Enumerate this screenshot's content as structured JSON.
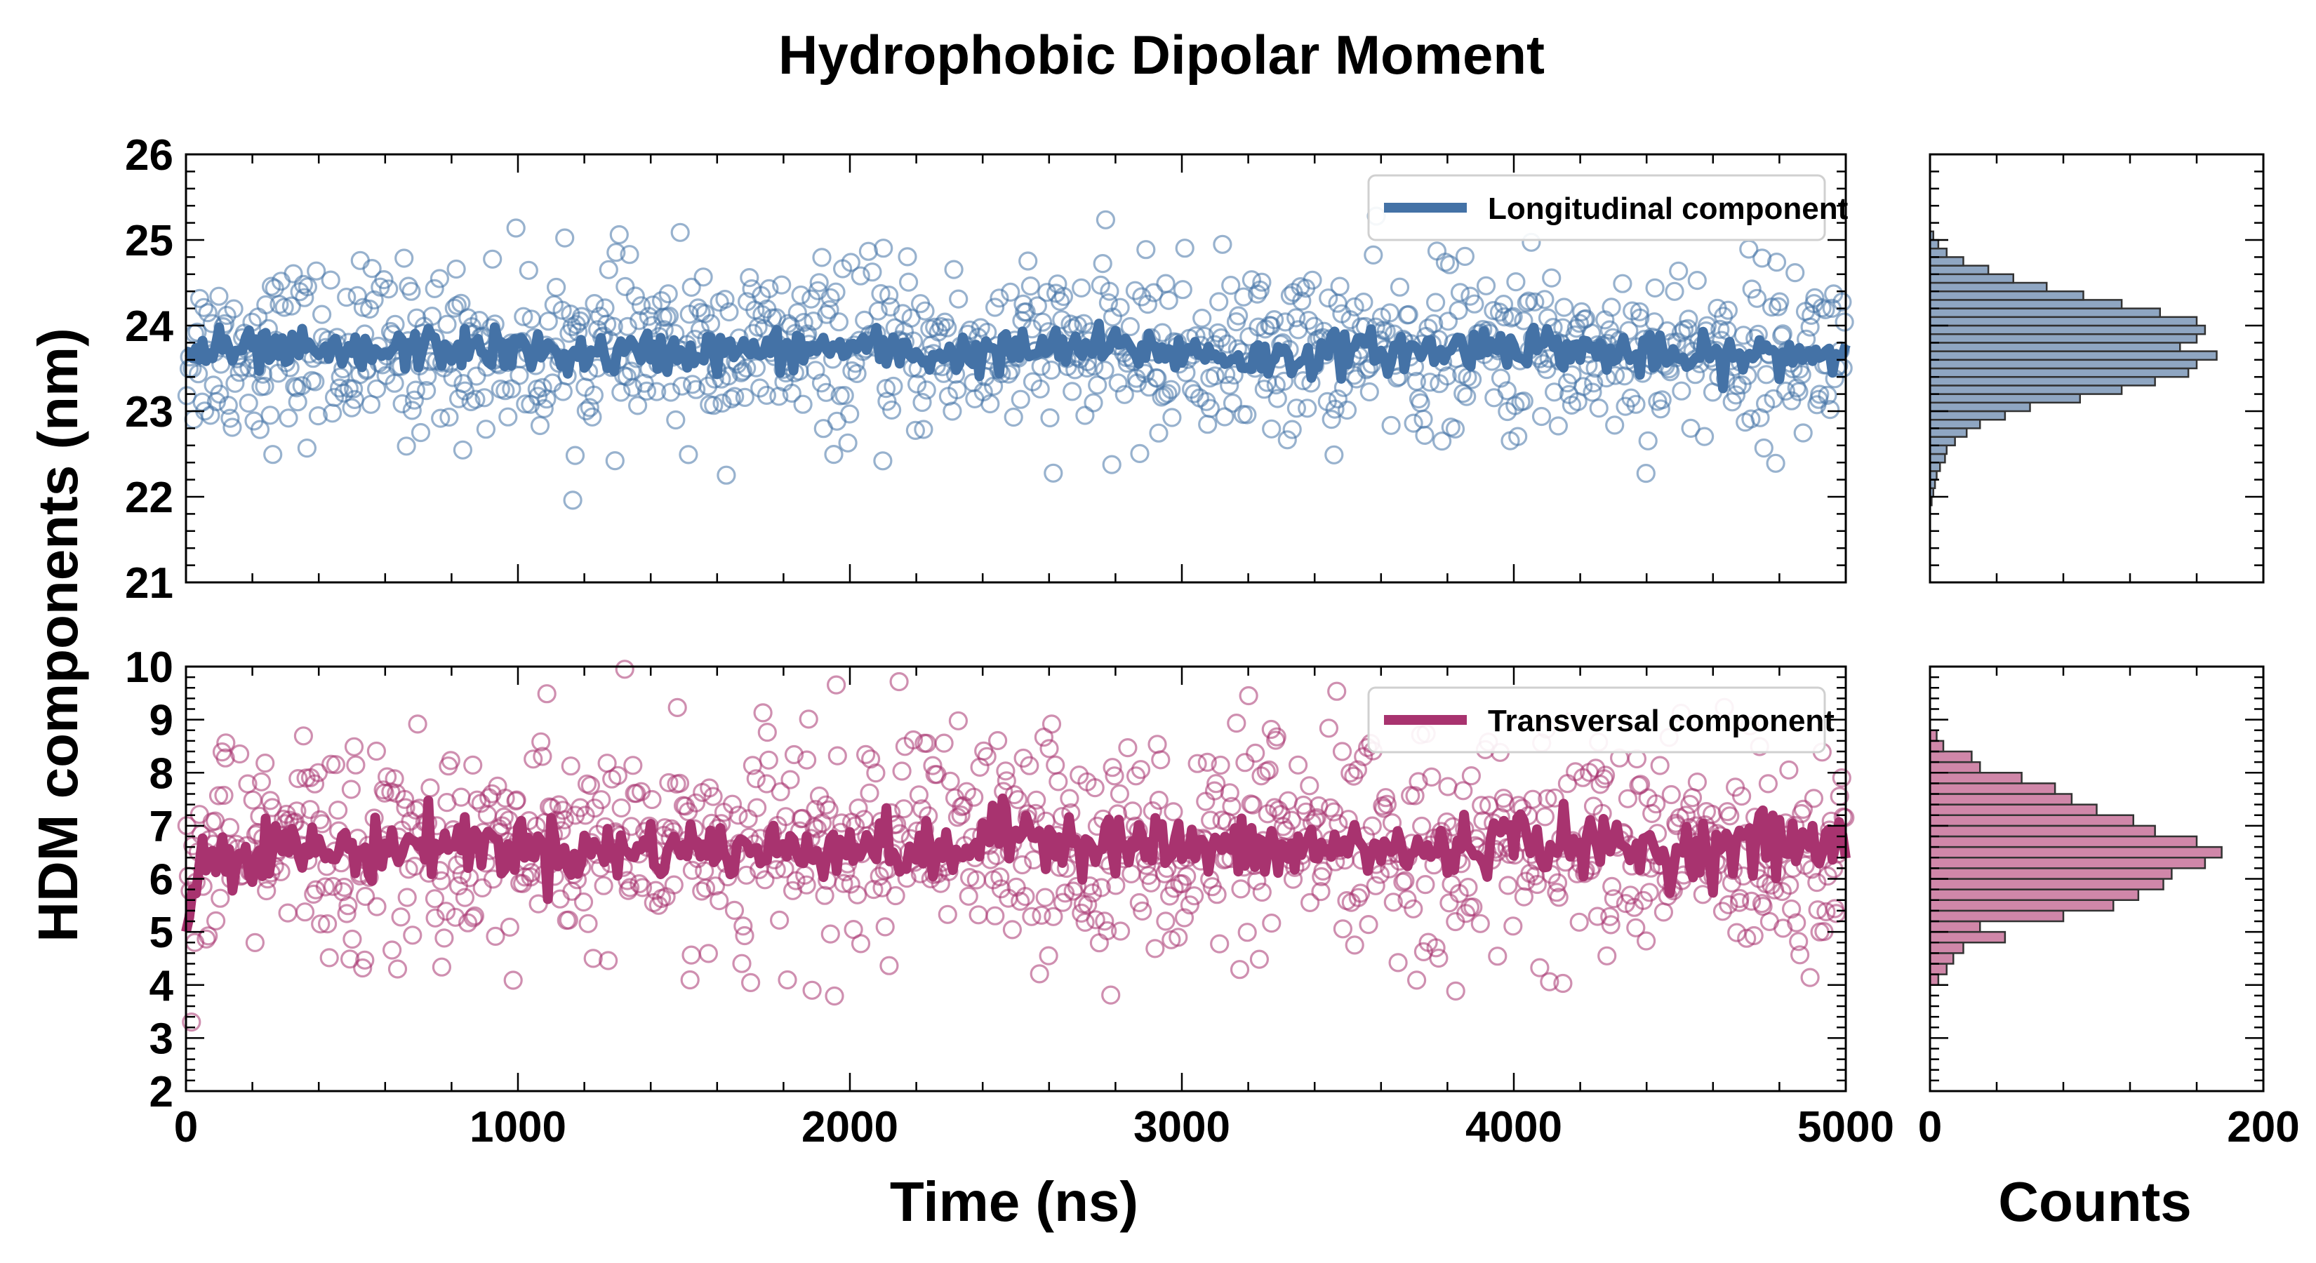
{
  "chart_data": [
    {
      "type": "scatter",
      "title": "Hydrophobic Dipolar Moment",
      "panel": "top",
      "xlabel": "",
      "ylabel": "HDM components (nm)",
      "xlim": [
        0,
        5000
      ],
      "ylim": [
        21,
        26
      ],
      "x_ticks": [
        "0",
        "1000",
        "2000",
        "3000",
        "4000",
        "5000"
      ],
      "y_ticks": [
        "21",
        "22",
        "23",
        "24",
        "25",
        "26"
      ],
      "series": [
        {
          "name": "Longitudinal component",
          "color": "#4472a6",
          "scatter": {
            "x_start": 0,
            "x_end": 5000,
            "mean": 23.7,
            "sd": 0.5,
            "count": 1000
          },
          "running_mean": {
            "x": [
              0,
              250,
              500,
              750,
              1000,
              1250,
              1500,
              1750,
              2000,
              2250,
              2500,
              2750,
              3000,
              3250,
              3500,
              3750,
              4000,
              4250,
              4500,
              4750,
              5000
            ],
            "y": [
              23.7,
              23.7,
              23.65,
              23.75,
              23.7,
              23.65,
              23.7,
              23.7,
              23.75,
              23.65,
              23.7,
              23.75,
              23.7,
              23.6,
              23.7,
              23.7,
              23.8,
              23.7,
              23.6,
              23.65,
              23.7
            ]
          }
        }
      ],
      "legend_position": "top-right",
      "grid": false
    },
    {
      "type": "scatter",
      "panel": "bottom",
      "xlabel": "Time (ns)",
      "ylabel": "",
      "xlim": [
        0,
        5000
      ],
      "ylim": [
        2,
        10
      ],
      "x_ticks": [
        "0",
        "1000",
        "2000",
        "3000",
        "4000",
        "5000"
      ],
      "y_ticks": [
        "2",
        "3",
        "4",
        "5",
        "6",
        "7",
        "8",
        "9",
        "10"
      ],
      "series": [
        {
          "name": "Transversal component",
          "color": "#a8336f",
          "scatter": {
            "x_start": 0,
            "x_end": 5000,
            "mean": 6.6,
            "sd": 1.05,
            "count": 1000
          },
          "running_mean": {
            "x": [
              0,
              50,
              250,
              500,
              750,
              1000,
              1250,
              1500,
              1750,
              2000,
              2250,
              2500,
              2750,
              3000,
              3250,
              3500,
              3750,
              4000,
              4250,
              4500,
              4750,
              5000
            ],
            "y": [
              5.0,
              6.4,
              6.6,
              6.5,
              6.7,
              6.6,
              6.5,
              6.6,
              6.5,
              6.7,
              6.4,
              6.9,
              6.7,
              6.6,
              6.5,
              6.6,
              6.5,
              6.8,
              6.6,
              6.5,
              6.7,
              6.6
            ]
          }
        }
      ],
      "legend_position": "top-right",
      "grid": false
    },
    {
      "type": "bar",
      "panel": "top-histogram",
      "orientation": "horizontal",
      "xlabel": "",
      "xlim": [
        0,
        200
      ],
      "bin_edges_start": 21.9,
      "bin_width": 0.1,
      "counts": [
        1,
        2,
        3,
        4,
        6,
        9,
        10,
        15,
        22,
        30,
        45,
        60,
        90,
        115,
        135,
        155,
        160,
        172,
        150,
        160,
        165,
        160,
        138,
        115,
        92,
        70,
        50,
        35,
        20,
        10,
        5,
        2
      ],
      "color": "#8fa6c2"
    },
    {
      "type": "bar",
      "panel": "bottom-histogram",
      "orientation": "horizontal",
      "xlabel": "Counts",
      "xlim": [
        0,
        200
      ],
      "x_ticks": [
        "0",
        "200"
      ],
      "bin_edges_start": 4.0,
      "bin_width": 0.2,
      "counts": [
        5,
        10,
        14,
        20,
        45,
        30,
        80,
        110,
        125,
        140,
        145,
        165,
        175,
        160,
        135,
        122,
        100,
        85,
        75,
        55,
        30,
        25,
        8,
        4
      ],
      "color": "#d087a9"
    }
  ]
}
